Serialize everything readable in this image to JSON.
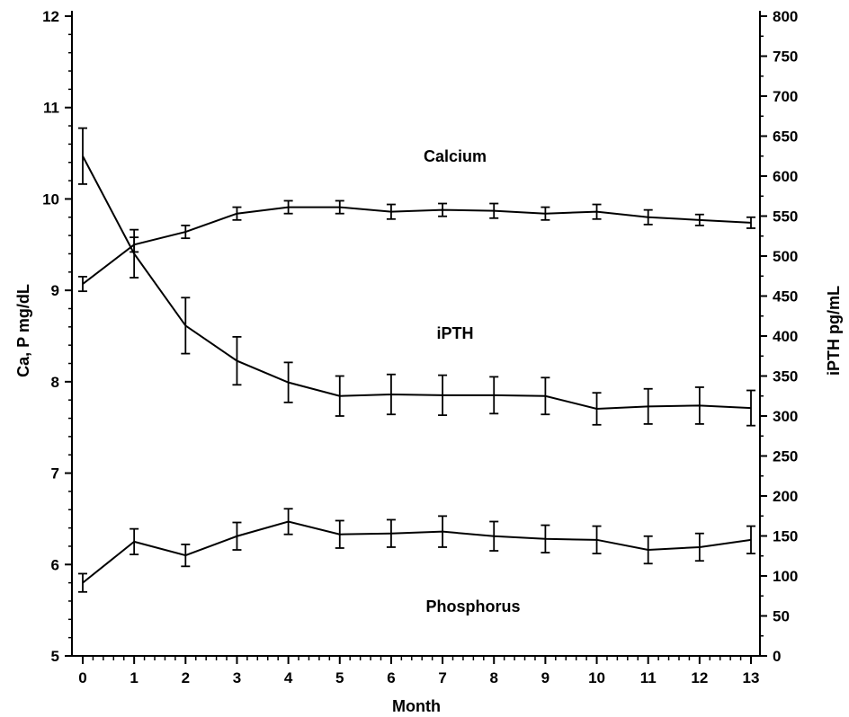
{
  "chart_data": {
    "type": "line",
    "title": "",
    "xlabel": "Month",
    "ylabel_left": "Ca, P mg/dL",
    "ylabel_right": "iPTH pg/mL",
    "x": [
      0,
      1,
      2,
      3,
      4,
      5,
      6,
      7,
      8,
      9,
      10,
      11,
      12,
      13
    ],
    "x_ticks": [
      "0",
      "1",
      "2",
      "3",
      "4",
      "5",
      "6",
      "7",
      "8",
      "9",
      "10",
      "11",
      "12",
      "13"
    ],
    "xlim": [
      0,
      13
    ],
    "ylim_left": [
      5,
      12
    ],
    "ylim_right": [
      0,
      800
    ],
    "y_ticks_left": [
      "5",
      "6",
      "7",
      "8",
      "9",
      "10",
      "11",
      "12"
    ],
    "y_ticks_right": [
      "0",
      "50",
      "100",
      "150",
      "200",
      "250",
      "300",
      "350",
      "400",
      "450",
      "500",
      "550",
      "600",
      "650",
      "700",
      "750",
      "800"
    ],
    "grid": false,
    "legend": "none",
    "series": [
      {
        "name": "Calcium",
        "axis": "left",
        "values": [
          9.07,
          9.5,
          9.64,
          9.84,
          9.91,
          9.91,
          9.86,
          9.88,
          9.87,
          9.84,
          9.86,
          9.8,
          9.77,
          9.74
        ],
        "errors": [
          0.08,
          0.08,
          0.07,
          0.07,
          0.07,
          0.07,
          0.08,
          0.07,
          0.08,
          0.07,
          0.08,
          0.08,
          0.06,
          0.06
        ]
      },
      {
        "name": "iPTH",
        "axis": "right",
        "values": [
          625,
          503,
          413,
          369,
          342,
          325,
          327,
          326,
          326,
          325,
          309,
          312,
          313,
          310
        ],
        "errors": [
          35,
          30,
          35,
          30,
          25,
          25,
          25,
          25,
          23,
          23,
          20,
          22,
          23,
          22
        ]
      },
      {
        "name": "Phosphorus",
        "axis": "left",
        "values": [
          5.8,
          6.25,
          6.1,
          6.31,
          6.47,
          6.33,
          6.34,
          6.36,
          6.31,
          6.28,
          6.27,
          6.16,
          6.19,
          6.27
        ],
        "errors": [
          0.1,
          0.14,
          0.12,
          0.15,
          0.14,
          0.15,
          0.15,
          0.17,
          0.16,
          0.15,
          0.15,
          0.15,
          0.15,
          0.15
        ]
      }
    ]
  }
}
